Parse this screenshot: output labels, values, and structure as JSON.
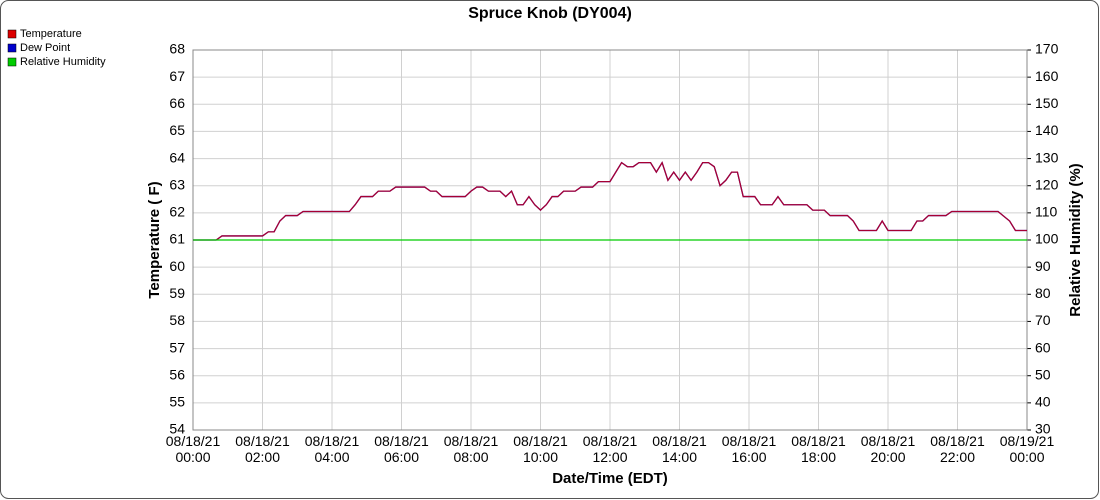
{
  "chart_data": {
    "type": "line",
    "title": "Spruce Knob (DY004)",
    "xlabel": "Date/Time (EDT)",
    "ylabel": "Temperature ( F)",
    "y2label": "Relative Humidity (%)",
    "x": [
      0,
      40,
      50,
      120,
      130,
      140,
      150,
      160,
      180,
      190,
      270,
      280,
      290,
      310,
      320,
      340,
      350,
      400,
      410,
      420,
      430,
      470,
      480,
      490,
      500,
      510,
      530,
      540,
      550,
      560,
      570,
      580,
      590,
      600,
      610,
      620,
      630,
      640,
      660,
      670,
      690,
      700,
      720,
      730,
      740,
      750,
      760,
      770,
      790,
      800,
      810,
      820,
      830,
      840,
      850,
      860,
      870,
      880,
      890,
      900,
      910,
      920,
      930,
      940,
      950,
      970,
      980,
      1000,
      1010,
      1020,
      1060,
      1070,
      1090,
      1100,
      1130,
      1140,
      1150,
      1180,
      1190,
      1200,
      1240,
      1250,
      1260,
      1270,
      1300,
      1310,
      1390,
      1410,
      1420,
      1440
    ],
    "series": [
      {
        "name": "Dew Point",
        "color": "#0000cc",
        "values": [
          61.0,
          61.0,
          61.15,
          61.15,
          61.3,
          61.3,
          61.7,
          61.9,
          61.9,
          62.05,
          62.05,
          62.3,
          62.6,
          62.6,
          62.8,
          62.8,
          62.95,
          62.95,
          62.8,
          62.8,
          62.6,
          62.6,
          62.8,
          62.95,
          62.95,
          62.8,
          62.8,
          62.6,
          62.8,
          62.3,
          62.3,
          62.6,
          62.3,
          62.1,
          62.3,
          62.6,
          62.6,
          62.8,
          62.8,
          62.95,
          62.95,
          63.15,
          63.15,
          63.5,
          63.85,
          63.7,
          63.7,
          63.85,
          63.85,
          63.5,
          63.85,
          63.2,
          63.5,
          63.2,
          63.5,
          63.2,
          63.5,
          63.85,
          63.85,
          63.7,
          63.0,
          63.2,
          63.5,
          63.5,
          62.6,
          62.6,
          62.3,
          62.3,
          62.6,
          62.3,
          62.3,
          62.1,
          62.1,
          61.9,
          61.9,
          61.7,
          61.35,
          61.35,
          61.7,
          61.35,
          61.35,
          61.7,
          61.7,
          61.9,
          61.9,
          62.05,
          62.05,
          61.7,
          61.35,
          61.35
        ]
      },
      {
        "name": "Temperature",
        "color": "#dd0000",
        "values": [
          61.0,
          61.0,
          61.15,
          61.15,
          61.3,
          61.3,
          61.7,
          61.9,
          61.9,
          62.05,
          62.05,
          62.3,
          62.6,
          62.6,
          62.8,
          62.8,
          62.95,
          62.95,
          62.8,
          62.8,
          62.6,
          62.6,
          62.8,
          62.95,
          62.95,
          62.8,
          62.8,
          62.6,
          62.8,
          62.3,
          62.3,
          62.6,
          62.3,
          62.1,
          62.3,
          62.6,
          62.6,
          62.8,
          62.8,
          62.95,
          62.95,
          63.15,
          63.15,
          63.5,
          63.85,
          63.7,
          63.7,
          63.85,
          63.85,
          63.5,
          63.85,
          63.2,
          63.5,
          63.2,
          63.5,
          63.2,
          63.5,
          63.85,
          63.85,
          63.7,
          63.0,
          63.2,
          63.5,
          63.5,
          62.6,
          62.6,
          62.3,
          62.3,
          62.6,
          62.3,
          62.3,
          62.1,
          62.1,
          61.9,
          61.9,
          61.7,
          61.35,
          61.35,
          61.7,
          61.35,
          61.35,
          61.7,
          61.7,
          61.9,
          61.9,
          62.05,
          62.05,
          61.7,
          61.35,
          61.35
        ]
      },
      {
        "name": "Relative Humidity",
        "color": "#00cc00",
        "axis": "y2",
        "x": [
          0,
          1440
        ],
        "values": [
          100,
          100
        ]
      }
    ],
    "legend_order": [
      1,
      0,
      2
    ],
    "xlim": [
      0,
      1440
    ],
    "xticks": [
      {
        "value": 0,
        "label": "08/18/21 00:00"
      },
      {
        "value": 120,
        "label": "08/18/21 02:00"
      },
      {
        "value": 240,
        "label": "08/18/21 04:00"
      },
      {
        "value": 360,
        "label": "08/18/21 06:00"
      },
      {
        "value": 480,
        "label": "08/18/21 08:00"
      },
      {
        "value": 600,
        "label": "08/18/21 10:00"
      },
      {
        "value": 720,
        "label": "08/18/21 12:00"
      },
      {
        "value": 840,
        "label": "08/18/21 14:00"
      },
      {
        "value": 960,
        "label": "08/18/21 16:00"
      },
      {
        "value": 1080,
        "label": "08/18/21 18:00"
      },
      {
        "value": 1200,
        "label": "08/18/21 20:00"
      },
      {
        "value": 1320,
        "label": "08/18/21 22:00"
      },
      {
        "value": 1440,
        "label": "08/19/21 00:00"
      }
    ],
    "ylim": [
      54,
      68
    ],
    "yticks": [
      54,
      55,
      56,
      57,
      58,
      59,
      60,
      61,
      62,
      63,
      64,
      65,
      66,
      67,
      68
    ],
    "y2lim": [
      30,
      170
    ],
    "y2ticks": [
      30,
      40,
      50,
      60,
      70,
      80,
      90,
      100,
      110,
      120,
      130,
      140,
      150,
      160,
      170
    ],
    "grid": true,
    "legend": "top-left"
  }
}
